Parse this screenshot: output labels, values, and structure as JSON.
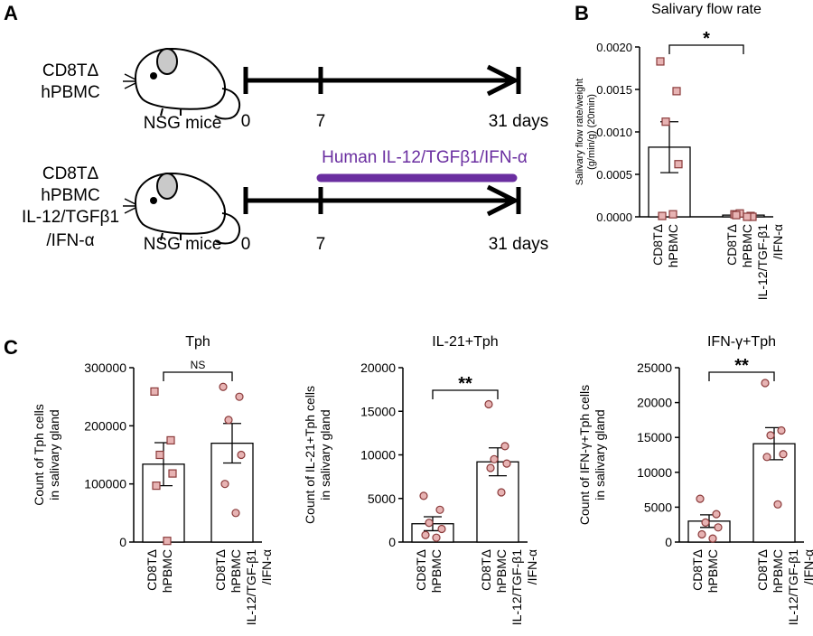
{
  "panels": {
    "A": {
      "label": "A",
      "rows": [
        {
          "group_lines": [
            "CD8TΔ",
            "hPBMC"
          ],
          "mouse_label": "NSG mice",
          "ticks": [
            "0",
            "7",
            "31 days"
          ]
        },
        {
          "group_lines": [
            "CD8TΔ",
            "hPBMC",
            "IL-12/TGFβ1",
            "/IFN-α"
          ],
          "mouse_label": "NSG mice",
          "ticks": [
            "0",
            "7",
            "31 days"
          ],
          "treatment_label": "Human IL-12/TGFβ1/IFN-α"
        }
      ],
      "treatment_color": "#6a2ea0"
    },
    "B": {
      "label": "B"
    },
    "C": {
      "label": "C"
    }
  },
  "colors": {
    "point_fill": "#e7b3b3",
    "point_stroke": "#8a3a3a"
  },
  "chart_data": [
    {
      "id": "B",
      "type": "bar",
      "title": "Salivary flow rate",
      "ylabel_lines": [
        "Salivary flow rate/weight",
        "(g/min/g) (20min)"
      ],
      "ylim": [
        0,
        0.002
      ],
      "yticks": [
        0,
        0.0005,
        0.001,
        0.0015,
        0.002
      ],
      "ytick_labels": [
        "0.0000",
        "0.0005",
        "0.0010",
        "0.0015",
        "0.0020"
      ],
      "categories": [
        [
          "CD8TΔ",
          "hPBMC"
        ],
        [
          "CD8TΔ",
          "hPBMC",
          "IL-12/TGF-β1",
          "/IFN-α"
        ]
      ],
      "values": [
        0.00082,
        2e-05
      ],
      "errors": [
        0.0003,
        1e-05
      ],
      "points": [
        [
          0.00183,
          0.00148,
          0.00112,
          0.00062,
          1e-05,
          3e-05
        ],
        [
          3e-05,
          1e-05,
          4e-05,
          0.0,
          2e-05,
          0.0
        ]
      ],
      "marker": "square",
      "significance": "*"
    },
    {
      "id": "C1",
      "type": "bar",
      "title": "Tph",
      "ylabel_lines": [
        "Count of Tph cells",
        "in salivary gland"
      ],
      "ylim": [
        0,
        300000
      ],
      "yticks": [
        0,
        100000,
        200000,
        300000
      ],
      "ytick_labels": [
        "0",
        "100000",
        "200000",
        "300000"
      ],
      "categories": [
        [
          "CD8TΔ",
          "hPBMC"
        ],
        [
          "CD8TΔ",
          "hPBMC",
          "IL-12/TGF-β1",
          "/IFN-α"
        ]
      ],
      "values": [
        134000,
        170000
      ],
      "errors": [
        37000,
        34000
      ],
      "points": [
        [
          259000,
          175000,
          150000,
          118000,
          97000,
          2000
        ],
        [
          267000,
          250000,
          210000,
          150000,
          100000,
          50000
        ]
      ],
      "marker": "square-circle",
      "significance": "NS"
    },
    {
      "id": "C2",
      "type": "bar",
      "title": "IL-21+Tph",
      "ylabel_lines": [
        "Count of IL-21+Tph cells",
        "in salivary gland"
      ],
      "ylim": [
        0,
        20000
      ],
      "yticks": [
        0,
        5000,
        10000,
        15000,
        20000
      ],
      "ytick_labels": [
        "0",
        "5000",
        "10000",
        "15000",
        "20000"
      ],
      "categories": [
        [
          "CD8TΔ",
          "hPBMC"
        ],
        [
          "CD8TΔ",
          "hPBMC",
          "IL-12/TGF-β1",
          "/IFN-α"
        ]
      ],
      "values": [
        2100,
        9200
      ],
      "errors": [
        800,
        1600
      ],
      "points": [
        [
          5300,
          3700,
          2200,
          1500,
          800,
          500
        ],
        [
          15800,
          11000,
          9500,
          9000,
          8500,
          5700
        ]
      ],
      "marker": "circle",
      "significance": "**"
    },
    {
      "id": "C3",
      "type": "bar",
      "title": "IFN-γ+Tph",
      "ylabel_lines": [
        "Count of IFN-γ+Tph cells",
        "in salivary gland"
      ],
      "ylim": [
        0,
        25000
      ],
      "yticks": [
        0,
        5000,
        10000,
        15000,
        20000,
        25000
      ],
      "ytick_labels": [
        "0",
        "5000",
        "10000",
        "15000",
        "20000",
        "25000"
      ],
      "categories": [
        [
          "CD8TΔ",
          "hPBMC"
        ],
        [
          "CD8TΔ",
          "hPBMC",
          "IL-12/TGF-β1",
          "/IFN-α"
        ]
      ],
      "values": [
        3000,
        14100
      ],
      "errors": [
        900,
        2300
      ],
      "points": [
        [
          6200,
          4000,
          2800,
          2100,
          1100,
          500
        ],
        [
          22800,
          16000,
          15300,
          12600,
          12200,
          5400
        ]
      ],
      "marker": "circle",
      "significance": "**"
    }
  ]
}
